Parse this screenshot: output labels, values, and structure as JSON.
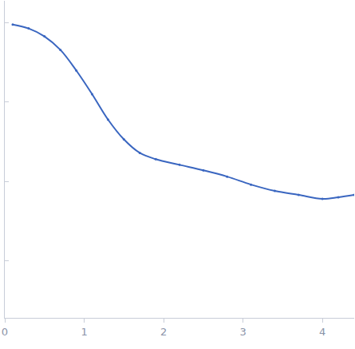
{
  "chart_data": {
    "type": "scatter",
    "marker": "circle",
    "color": "#3a66c0",
    "log": "y",
    "x": [
      0.1,
      0.3,
      0.5,
      0.7,
      0.9,
      1.1,
      1.3,
      1.5,
      1.7,
      1.9,
      2.2,
      2.5,
      2.8,
      3.1,
      3.4,
      3.7,
      4.0,
      4.2,
      4.4
    ],
    "values": [
      0.0955,
      0.0851,
      0.0676,
      0.0457,
      0.0251,
      0.0126,
      0.00603,
      0.00339,
      0.00229,
      0.00191,
      0.00162,
      0.00138,
      0.00115,
      0.000912,
      0.000759,
      0.000676,
      0.000603,
      0.000631,
      0.000676
    ],
    "xlim": [
      0,
      4.4
    ],
    "xticks": [
      0,
      1,
      2,
      3,
      4
    ],
    "ylim": [
      1.9e-05,
      0.19
    ],
    "yticks": [
      0.0001,
      0.001,
      0.01,
      0.1
    ],
    "grid": false,
    "tick_labels": "x"
  }
}
